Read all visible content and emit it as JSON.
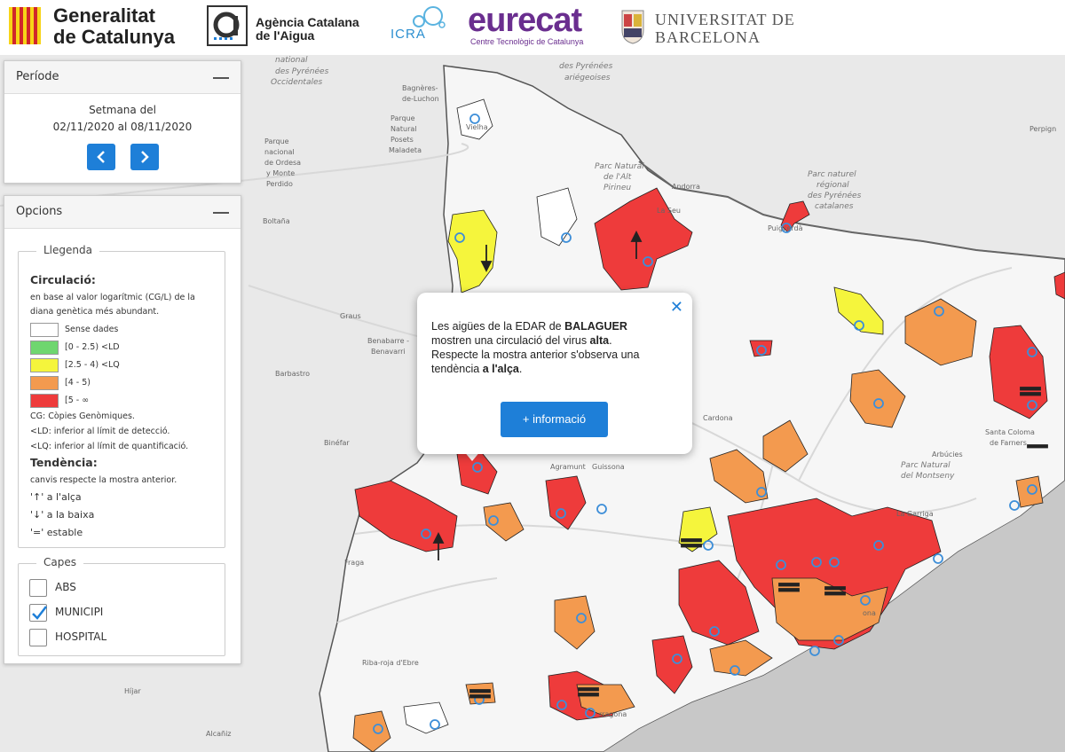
{
  "header": {
    "generalitat_line1": "Generalitat",
    "generalitat_line2": "de Catalunya",
    "aca_line1": "Agència Catalana",
    "aca_line2": "de l'Aigua",
    "icra": "ICRA",
    "eurecat": "eurecat",
    "eurecat_sub": "Centre Tecnològic de Catalunya",
    "ub_line1": "UNIVERSITAT DE",
    "ub_line2": "BARCELONA"
  },
  "periode": {
    "title": "Període",
    "week_label": "Setmana del",
    "week_range": "02/11/2020 al 08/11/2020",
    "prev_icon": "chevron-left-icon",
    "next_icon": "chevron-right-icon"
  },
  "opcions": {
    "title": "Opcions",
    "legend": {
      "title": "Llegenda",
      "circulation_title": "Circulació:",
      "circulation_desc1": "en base al valor logarítmic (CG/L) de la",
      "circulation_desc2": "diana genètica més abundant.",
      "classes": [
        {
          "label": "Sense dades",
          "color": "#ffffff"
        },
        {
          "label": "[0 - 2.5) <LD",
          "color": "#6fd66f"
        },
        {
          "label": "[2.5 - 4) <LQ",
          "color": "#f5f53c"
        },
        {
          "label": "[4 - 5)",
          "color": "#f39a4f"
        },
        {
          "label": "[5 - ∞",
          "color": "#ee3b3b"
        }
      ],
      "cg_note": "CG: Còpies Genòmiques.",
      "ld_note": "<LD: inferior al límit de detecció.",
      "lq_note": "<LQ: inferior al límit de quantificació.",
      "trend_title": "Tendència:",
      "trend_desc": "canvis respecte la mostra anterior.",
      "trend_up": "'↑' a l'alça",
      "trend_down": "'↓' a la baixa",
      "trend_equal": "'=' estable"
    },
    "layers": {
      "title": "Capes",
      "items": [
        {
          "label": "ABS",
          "checked": false
        },
        {
          "label": "MUNICIPI",
          "checked": true
        },
        {
          "label": "HOSPITAL",
          "checked": false
        }
      ]
    }
  },
  "popup": {
    "line1_pre": "Les aigües de la EDAR de ",
    "line1_bold": "BALAGUER",
    "line2_pre": "mostren una circulació del virus ",
    "line2_bold": "alta",
    "line2_post": ".",
    "line3": "Respecte la mostra anterior s'observa una",
    "line4_pre": "tendència ",
    "line4_bold": "a l'alça",
    "line4_post": ".",
    "button_label": "+ informació"
  },
  "map": {
    "labels": {
      "pyr_occ1": "national",
      "pyr_occ2": "des Pyrénées",
      "pyr_occ3": "Occidentales",
      "pyr_ari1": "national",
      "pyr_ari2": "des Pyrénées",
      "pyr_ari3": "ariégeoises",
      "bagneres1": "Bagnères-",
      "bagneres2": "de-Luchon",
      "andorra": "Andorra",
      "parc_alt1": "Parc Natural",
      "parc_alt2": "de l'Alt",
      "parc_alt3": "Pirineu",
      "parc_cat1": "Parc naturel",
      "parc_cat2": "régional",
      "parc_cat3": "des Pyrénées",
      "parc_cat4": "catalanes",
      "perpignan": "Perpign",
      "boltana": "Boltaña",
      "graus": "Graus",
      "benabarre1": "Benabarre -",
      "benabarre2": "Benavarri",
      "barbastro": "Barbastro",
      "binefar": "Binéfar",
      "fraga": "Fraga",
      "agramunt": "Agramunt",
      "guissona": "Guissona",
      "cardona": "Cardona",
      "montseny1": "Parc Natural",
      "montseny2": "del Montseny",
      "arbucies": "Arbúcies",
      "coloma1": "Santa Coloma",
      "coloma2": "de Farners",
      "garriga": "La Garriga",
      "riba": "Riba-roja d'Ebre",
      "hijar": "Híjar",
      "alcaniz": "Alcañiz",
      "puigcerda": "Puigcerdà",
      "laseu": "La Seu",
      "vielha": "Vielha",
      "parque1": "Parque",
      "parque2": "Natural",
      "parque3": "Posets",
      "parque4": "Maladeta",
      "ordesa1": "Parque",
      "ordesa2": "nacional",
      "ordesa3": "de Ordesa",
      "ordesa4": "y Monte",
      "ordesa5": "Perdido",
      "barcelona": "ona",
      "tarragona": "rragona"
    }
  }
}
